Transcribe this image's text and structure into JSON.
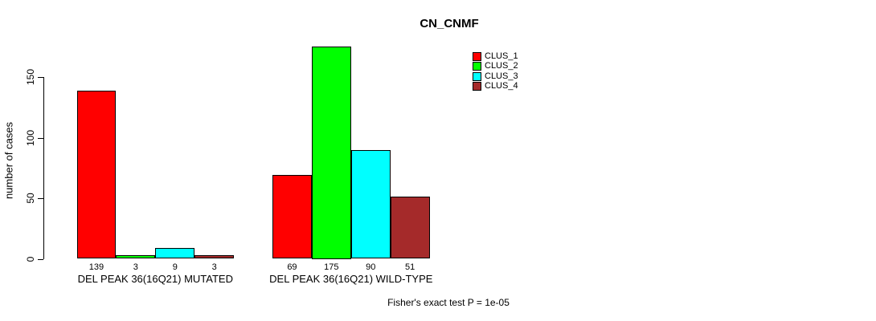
{
  "title": "CN_CNMF",
  "y_axis": {
    "label": "number of cases",
    "ticks": [
      0,
      50,
      100,
      150
    ]
  },
  "legend": {
    "items": [
      "CLUS_1",
      "CLUS_2",
      "CLUS_3",
      "CLUS_4"
    ]
  },
  "footnote": "Fisher's exact test P = 1e-05",
  "colors": {
    "clus_1": "#ff0000",
    "clus_2": "#00ff00",
    "clus_3": "#00ffff",
    "clus_4": "#a52a2a",
    "axis": "#000000",
    "background": "#ffffff"
  },
  "chart_data": {
    "type": "bar",
    "title": "CN_CNMF",
    "xlabel": "",
    "ylabel": "number of cases",
    "ylim": [
      0,
      175
    ],
    "yticks": [
      0,
      50,
      100,
      150
    ],
    "grid": false,
    "legend_position": "top-right",
    "categories": [
      "DEL PEAK 36(16Q21) MUTATED",
      "DEL PEAK 36(16Q21) WILD-TYPE"
    ],
    "series": [
      {
        "name": "CLUS_1",
        "color": "#ff0000",
        "values": [
          139,
          69
        ]
      },
      {
        "name": "CLUS_2",
        "color": "#00ff00",
        "values": [
          3,
          175
        ]
      },
      {
        "name": "CLUS_3",
        "color": "#00ffff",
        "values": [
          9,
          90
        ]
      },
      {
        "name": "CLUS_4",
        "color": "#a52a2a",
        "values": [
          3,
          51
        ]
      }
    ],
    "bar_value_labels": [
      [
        139,
        3,
        9,
        3
      ],
      [
        69,
        175,
        90,
        51
      ]
    ],
    "annotation": "Fisher's exact test P = 1e-05"
  }
}
